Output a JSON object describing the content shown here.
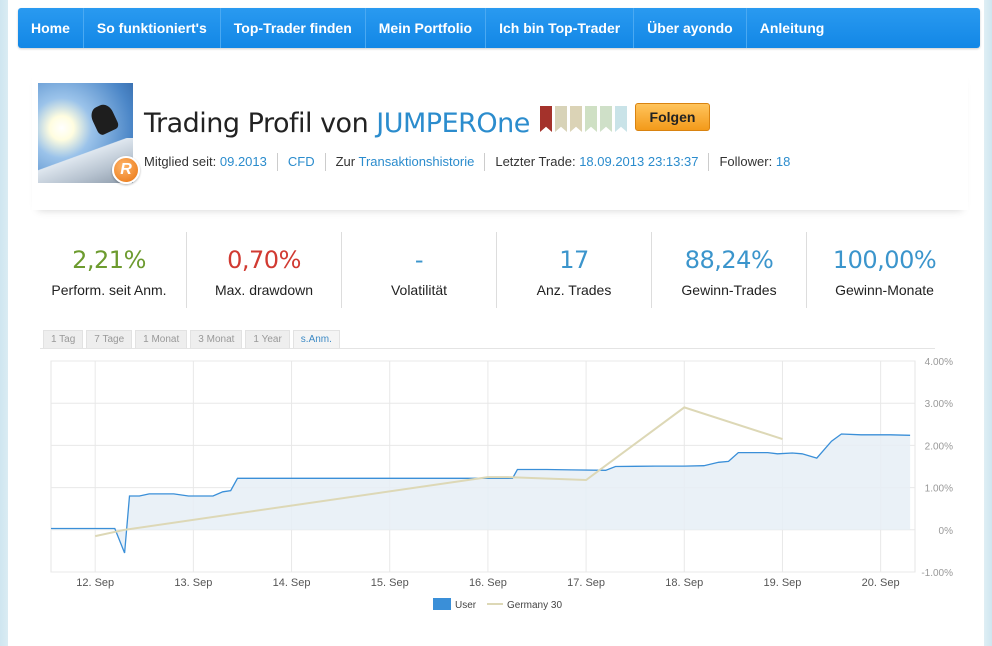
{
  "nav": {
    "items": [
      "Home",
      "So funktioniert's",
      "Top-Trader finden",
      "Mein Portfolio",
      "Ich bin Top-Trader",
      "Über ayondo",
      "Anleitung"
    ]
  },
  "profile": {
    "title_prefix": "Trading Profil von",
    "username": "JUMPEROne",
    "avatar_badge": "R",
    "follow_label": "Folgen",
    "rank_flags": [
      "#a4322b",
      "#d8d3b8",
      "#dbd3b6",
      "#cfe0c4",
      "#cfe0c8",
      "#c9e3e8"
    ],
    "member_since_label": "Mitglied seit:",
    "member_since": "09.2013",
    "type": "CFD",
    "history_prefix": "Zur",
    "history_link": "Transaktionshistorie",
    "last_trade_label": "Letzter Trade:",
    "last_trade": "18.09.2013 23:13:37",
    "followers_label": "Follower:",
    "followers": "18"
  },
  "stats": [
    {
      "value": "2,21%",
      "label": "Perform. seit Anm.",
      "color": "#6d9b2f"
    },
    {
      "value": "0,70%",
      "label": "Max. drawdown",
      "color": "#d13a32"
    },
    {
      "value": "-",
      "label": "Volatilität",
      "color": "#3b95cc"
    },
    {
      "value": "17",
      "label": "Anz. Trades",
      "color": "#3b95cc"
    },
    {
      "value": "88,24%",
      "label": "Gewinn-Trades",
      "color": "#3b95cc"
    },
    {
      "value": "100,00%",
      "label": "Gewinn-Monate",
      "color": "#3b95cc"
    }
  ],
  "range_tabs": [
    "1 Tag",
    "7 Tage",
    "1 Monat",
    "3 Monat",
    "1 Year",
    "s.Anm."
  ],
  "active_range": "s.Anm.",
  "chart_data": {
    "type": "line",
    "x_ticks": [
      "12. Sep",
      "13. Sep",
      "14. Sep",
      "15. Sep",
      "16. Sep",
      "17. Sep",
      "18. Sep",
      "19. Sep",
      "20. Sep"
    ],
    "y_ticks": [
      "4.00%",
      "3.00%",
      "2.00%",
      "1.00%",
      "0%",
      "-1.00%"
    ],
    "ylim": [
      -1.0,
      4.0
    ],
    "xlim": [
      11.55,
      20.35
    ],
    "grid": true,
    "legend_position": "bottom-center",
    "series": [
      {
        "name": "User",
        "color": "#3a8fd8",
        "area": true,
        "points": [
          [
            11.55,
            0.03
          ],
          [
            12.2,
            0.03
          ],
          [
            12.3,
            -0.55
          ],
          [
            12.35,
            0.8
          ],
          [
            12.45,
            0.8
          ],
          [
            12.55,
            0.85
          ],
          [
            12.65,
            0.85
          ],
          [
            12.8,
            0.85
          ],
          [
            12.95,
            0.8
          ],
          [
            13.2,
            0.8
          ],
          [
            13.3,
            0.9
          ],
          [
            13.38,
            0.93
          ],
          [
            13.45,
            1.22
          ],
          [
            14.0,
            1.22
          ],
          [
            15.0,
            1.22
          ],
          [
            16.0,
            1.22
          ],
          [
            16.25,
            1.22
          ],
          [
            16.3,
            1.43
          ],
          [
            16.6,
            1.43
          ],
          [
            16.85,
            1.42
          ],
          [
            17.2,
            1.41
          ],
          [
            17.3,
            1.5
          ],
          [
            17.7,
            1.51
          ],
          [
            18.0,
            1.51
          ],
          [
            18.2,
            1.52
          ],
          [
            18.35,
            1.6
          ],
          [
            18.45,
            1.62
          ],
          [
            18.55,
            1.83
          ],
          [
            18.85,
            1.83
          ],
          [
            18.95,
            1.8
          ],
          [
            19.1,
            1.82
          ],
          [
            19.2,
            1.8
          ],
          [
            19.35,
            1.7
          ],
          [
            19.5,
            2.1
          ],
          [
            19.6,
            2.27
          ],
          [
            19.8,
            2.25
          ],
          [
            20.1,
            2.25
          ],
          [
            20.3,
            2.24
          ]
        ]
      },
      {
        "name": "Germany 30",
        "color": "#ddd8b6",
        "area": false,
        "points": [
          [
            12.0,
            -0.15
          ],
          [
            12.3,
            0.0
          ],
          [
            16.0,
            1.25
          ],
          [
            16.2,
            1.25
          ],
          [
            17.0,
            1.18
          ],
          [
            18.0,
            2.9
          ],
          [
            19.0,
            2.15
          ]
        ]
      }
    ]
  }
}
